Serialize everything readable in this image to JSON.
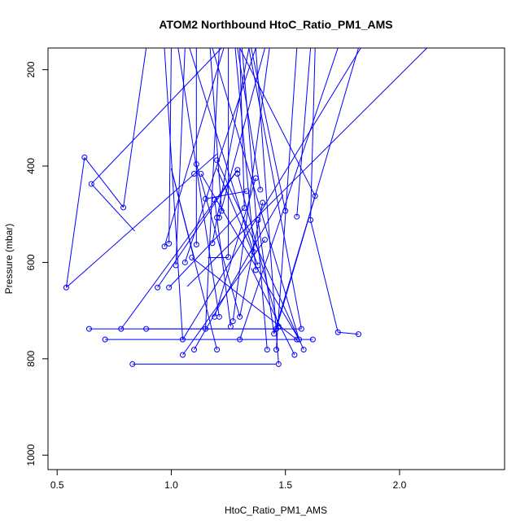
{
  "chart_data": {
    "type": "scatter",
    "title": "ATOM2 Northbound HtoC_Ratio_PM1_AMS",
    "xlabel": "HtoC_Ratio_PM1_AMS",
    "ylabel": "Pressure (mbar)",
    "xlim": [
      0.46,
      2.46
    ],
    "ylim": [
      1030,
      155
    ],
    "y_axis_inverted": true,
    "x_ticks": [
      0.5,
      1.0,
      1.5,
      2.0
    ],
    "x_tick_labels": [
      "0.5",
      "1.0",
      "1.5",
      "2.0"
    ],
    "y_ticks": [
      200,
      400,
      600,
      800,
      1000
    ],
    "y_tick_labels": [
      "200",
      "400",
      "600",
      "800",
      "1000"
    ],
    "grid": false,
    "legend": "none",
    "colors": {
      "series": "#0000ff",
      "frame": "#000000"
    },
    "series": [
      {
        "points": [
          [
            0.54,
            652
          ],
          [
            0.62,
            382
          ],
          [
            0.65,
            437
          ],
          [
            0.79,
            486
          ],
          [
            0.64,
            738
          ],
          [
            0.78,
            738
          ],
          [
            0.89,
            738
          ],
          [
            0.71,
            760
          ],
          [
            0.83,
            811
          ],
          [
            0.94,
            652
          ],
          [
            0.97,
            567
          ],
          [
            0.99,
            561
          ],
          [
            0.99,
            652
          ],
          [
            1.02,
            606
          ],
          [
            1.05,
            760
          ],
          [
            1.05,
            792
          ],
          [
            1.06,
            600
          ],
          [
            1.09,
            590
          ],
          [
            1.1,
            781
          ],
          [
            1.11,
            563
          ],
          [
            1.11,
            396
          ],
          [
            1.1,
            416
          ],
          [
            1.13,
            416
          ],
          [
            1.15,
            468
          ],
          [
            1.15,
            738
          ],
          [
            1.18,
            560
          ],
          [
            1.19,
            470
          ],
          [
            1.19,
            713
          ],
          [
            1.2,
            781
          ],
          [
            1.2,
            388
          ],
          [
            1.2,
            507
          ],
          [
            1.21,
            507
          ],
          [
            1.21,
            713
          ],
          [
            1.22,
            493
          ],
          [
            1.25,
            589
          ],
          [
            1.26,
            733
          ],
          [
            1.27,
            722
          ],
          [
            1.29,
            408
          ],
          [
            1.29,
            416
          ],
          [
            1.3,
            713
          ],
          [
            1.3,
            760
          ],
          [
            1.32,
            487
          ],
          [
            1.33,
            452
          ],
          [
            1.36,
            578
          ],
          [
            1.37,
            425
          ],
          [
            1.37,
            616
          ],
          [
            1.38,
            606
          ],
          [
            1.38,
            512
          ],
          [
            1.39,
            449
          ],
          [
            1.4,
            476
          ],
          [
            1.41,
            553
          ],
          [
            1.42,
            781
          ],
          [
            1.45,
            748
          ],
          [
            1.46,
            738
          ],
          [
            1.47,
            733
          ],
          [
            1.47,
            811
          ],
          [
            1.46,
            781
          ],
          [
            1.5,
            493
          ],
          [
            1.54,
            792
          ],
          [
            1.55,
            505
          ],
          [
            1.55,
            760
          ],
          [
            1.56,
            760
          ],
          [
            1.57,
            738
          ],
          [
            1.58,
            781
          ],
          [
            1.61,
            512
          ],
          [
            1.62,
            760
          ],
          [
            1.63,
            462
          ],
          [
            1.73,
            745
          ],
          [
            1.82,
            749
          ]
        ]
      }
    ],
    "segments": [
      [
        0.54,
        652,
        0.62,
        382
      ],
      [
        0.62,
        382,
        0.79,
        486
      ],
      [
        0.65,
        437,
        0.84,
        535
      ],
      [
        0.65,
        437,
        1.22,
        155
      ],
      [
        0.79,
        486,
        0.89,
        155
      ],
      [
        0.54,
        652,
        1.2,
        375
      ],
      [
        0.64,
        738,
        1.57,
        738
      ],
      [
        0.78,
        738,
        1.29,
        408
      ],
      [
        0.89,
        738,
        1.48,
        738
      ],
      [
        0.71,
        760,
        1.62,
        760
      ],
      [
        0.83,
        811,
        1.46,
        811
      ],
      [
        0.94,
        652,
        1.29,
        408
      ],
      [
        0.97,
        567,
        1.23,
        155
      ],
      [
        0.99,
        561,
        1.0,
        155
      ],
      [
        0.99,
        652,
        1.32,
        487
      ],
      [
        1.02,
        606,
        1.06,
        155
      ],
      [
        1.05,
        760,
        0.97,
        155
      ],
      [
        1.05,
        792,
        1.41,
        553
      ],
      [
        1.06,
        600,
        1.37,
        155
      ],
      [
        1.09,
        590,
        1.55,
        760
      ],
      [
        1.1,
        781,
        1.49,
        460
      ],
      [
        1.11,
        563,
        1.11,
        155
      ],
      [
        1.11,
        396,
        1.3,
        713
      ],
      [
        1.13,
        416,
        1.56,
        760
      ],
      [
        1.15,
        468,
        1.33,
        452
      ],
      [
        1.15,
        738,
        1.21,
        155
      ],
      [
        1.18,
        560,
        1.34,
        155
      ],
      [
        1.19,
        470,
        1.26,
        733
      ],
      [
        1.19,
        713,
        1.37,
        425
      ],
      [
        1.2,
        781,
        1.0,
        405
      ],
      [
        1.2,
        388,
        1.58,
        781
      ],
      [
        1.21,
        507,
        1.41,
        155
      ],
      [
        1.21,
        713,
        1.03,
        155
      ],
      [
        1.22,
        493,
        1.17,
        155
      ],
      [
        1.25,
        589,
        1.25,
        155
      ],
      [
        1.27,
        722,
        1.43,
        155
      ],
      [
        1.29,
        416,
        1.47,
        733
      ],
      [
        1.3,
        713,
        1.4,
        476
      ],
      [
        1.3,
        760,
        1.73,
        155
      ],
      [
        1.32,
        487,
        1.3,
        155
      ],
      [
        1.36,
        578,
        1.08,
        155
      ],
      [
        1.37,
        616,
        1.28,
        155
      ],
      [
        1.38,
        606,
        1.2,
        405
      ],
      [
        1.38,
        512,
        1.45,
        748
      ],
      [
        1.39,
        449,
        1.29,
        155
      ],
      [
        1.42,
        781,
        1.31,
        155
      ],
      [
        1.46,
        781,
        1.55,
        155
      ],
      [
        1.47,
        811,
        1.37,
        155
      ],
      [
        1.5,
        493,
        1.35,
        155
      ],
      [
        1.54,
        792,
        1.35,
        612
      ],
      [
        1.55,
        505,
        1.61,
        155
      ],
      [
        1.56,
        760,
        1.18,
        155
      ],
      [
        1.57,
        738,
        1.34,
        155
      ],
      [
        1.61,
        512,
        1.63,
        155
      ],
      [
        1.63,
        462,
        1.3,
        155
      ],
      [
        1.73,
        745,
        1.82,
        749
      ],
      [
        1.61,
        512,
        1.73,
        745
      ],
      [
        1.46,
        738,
        1.82,
        155
      ],
      [
        1.07,
        650,
        2.12,
        155
      ],
      [
        1.05,
        760,
        1.83,
        155
      ],
      [
        1.1,
        590,
        1.0,
        405
      ],
      [
        1.16,
        590,
        1.25,
        590
      ],
      [
        1.45,
        748,
        1.63,
        462
      ]
    ]
  }
}
